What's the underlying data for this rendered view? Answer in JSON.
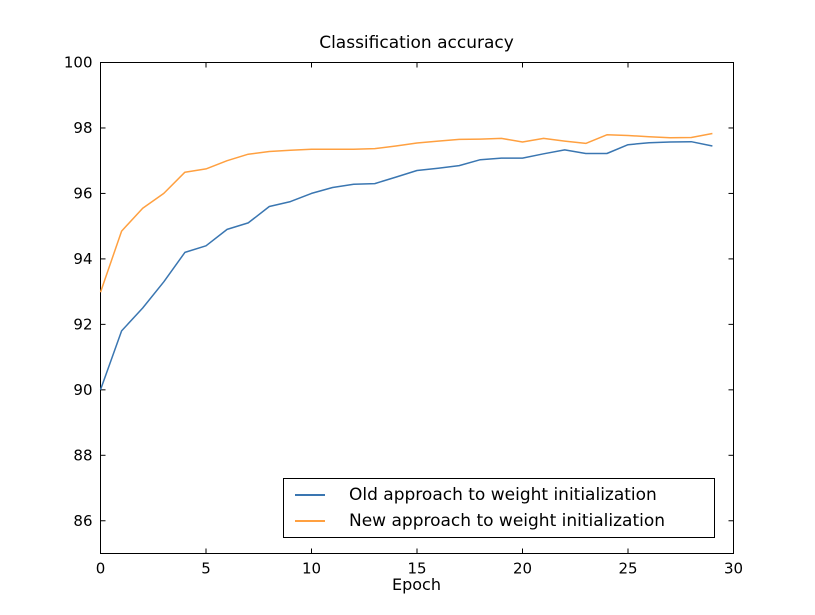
{
  "chart_data": {
    "type": "line",
    "title": "Classification accuracy",
    "xlabel": "Epoch",
    "ylabel": "",
    "xlim": [
      0,
      30
    ],
    "ylim": [
      85,
      100
    ],
    "x_ticks": [
      "0",
      "5",
      "10",
      "15",
      "20",
      "25",
      "30"
    ],
    "y_ticks": [
      "86",
      "88",
      "90",
      "92",
      "94",
      "96",
      "98",
      "100"
    ],
    "grid": false,
    "legend_position": "lower right",
    "background_color": "#ffffff",
    "axis_color": "#000000",
    "x": [
      0,
      1,
      2,
      3,
      4,
      5,
      6,
      7,
      8,
      9,
      10,
      11,
      12,
      13,
      14,
      15,
      16,
      17,
      18,
      19,
      20,
      21,
      22,
      23,
      24,
      25,
      26,
      27,
      28,
      29
    ],
    "series": [
      {
        "name": "Old approach to weight initialization",
        "color": "#3a76b1",
        "values": [
          90.0,
          91.8,
          92.5,
          93.3,
          94.2,
          94.4,
          94.9,
          95.1,
          95.6,
          95.75,
          96.0,
          96.18,
          96.28,
          96.3,
          96.5,
          96.7,
          96.77,
          96.85,
          97.03,
          97.08,
          97.08,
          97.21,
          97.33,
          97.22,
          97.22,
          97.49,
          97.55,
          97.57,
          97.58,
          97.45
        ]
      },
      {
        "name": "New approach to weight initialization",
        "color": "#ffa040",
        "values": [
          92.98,
          94.85,
          95.55,
          96.0,
          96.65,
          96.75,
          97.0,
          97.2,
          97.28,
          97.32,
          97.35,
          97.35,
          97.35,
          97.37,
          97.45,
          97.54,
          97.6,
          97.65,
          97.66,
          97.68,
          97.57,
          97.68,
          97.6,
          97.53,
          97.79,
          97.77,
          97.73,
          97.7,
          97.71,
          97.83
        ]
      }
    ]
  }
}
